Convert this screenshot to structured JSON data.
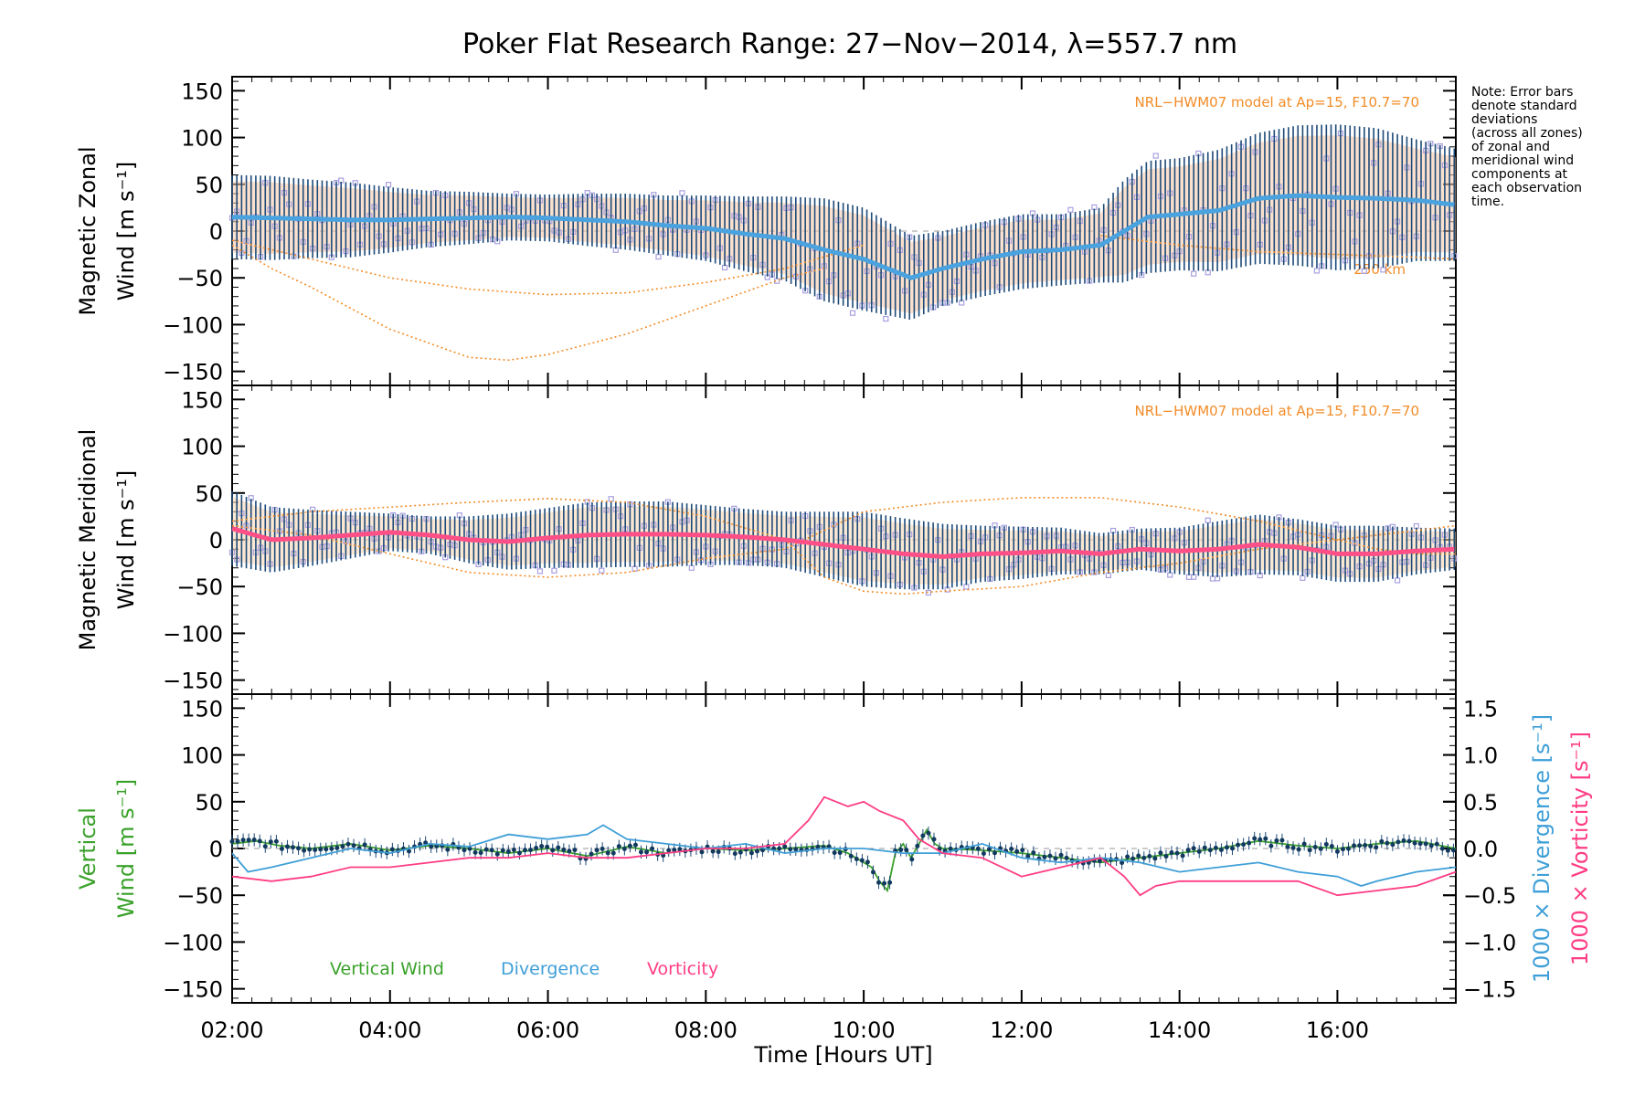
{
  "colors": {
    "zonal_mean": "#4aa3df",
    "meridional_mean": "#ff4f87",
    "error_bar": "#1e4a78",
    "model_line": "#f28c28",
    "vertical": "#3aa12a",
    "divergence": "#3f9fd8",
    "vorticity": "#ff3d84",
    "scatter_points": "#a8a0e0"
  },
  "figure": {
    "title": "Poker Flat Research Range: 27−Nov−2014, λ=557.7 nm",
    "note": [
      "Note: Error bars",
      "denote standard",
      "deviations",
      "(across all zones)",
      "of zonal and",
      "meridional wind",
      "components at",
      "each observation",
      "time."
    ],
    "xlabel": "Time [Hours UT]"
  },
  "chart_data": [
    {
      "type": "line",
      "panel": "zonal",
      "ylabel_line1": "Magnetic Zonal",
      "ylabel_line2": "Wind [m s⁻¹]",
      "ylim": [
        -165,
        165
      ],
      "yticks": [
        150,
        100,
        50,
        0,
        -50,
        -100,
        -150
      ],
      "ytick_labels": [
        "150",
        "100",
        "50",
        "0",
        "−50",
        "−100",
        "−150"
      ],
      "xlim": [
        2.0,
        17.5
      ],
      "model_label": "NRL−HWM07 model at Ap=15, F10.7=70",
      "model_line_label": "250 km",
      "series": [
        {
          "role": "mean",
          "x": [
            2.0,
            2.5,
            3.0,
            3.5,
            4.0,
            4.5,
            5.0,
            5.5,
            6.0,
            6.5,
            7.0,
            7.5,
            8.0,
            8.5,
            9.0,
            9.5,
            10.0,
            10.3,
            10.6,
            11.0,
            11.5,
            12.0,
            12.5,
            13.0,
            13.3,
            13.6,
            14.0,
            14.5,
            15.0,
            15.5,
            16.0,
            16.5,
            17.0,
            17.5
          ],
          "y": [
            15,
            14,
            13,
            12,
            12,
            13,
            14,
            15,
            14,
            12,
            10,
            6,
            3,
            -3,
            -8,
            -20,
            -30,
            -40,
            -50,
            -40,
            -30,
            -22,
            -20,
            -15,
            0,
            15,
            18,
            22,
            35,
            38,
            36,
            35,
            33,
            28
          ],
          "err": [
            45,
            45,
            42,
            40,
            35,
            30,
            28,
            25,
            25,
            28,
            30,
            32,
            35,
            40,
            45,
            55,
            55,
            50,
            45,
            40,
            40,
            40,
            38,
            40,
            55,
            60,
            60,
            65,
            70,
            75,
            78,
            75,
            65,
            60
          ]
        },
        {
          "role": "model",
          "x": [
            2.0,
            2.5,
            3.0,
            4.0,
            5.0,
            5.5,
            6.0,
            7.0,
            8.0,
            9.0,
            9.5
          ],
          "y": [
            -15,
            -40,
            -60,
            -105,
            -135,
            -138,
            -132,
            -110,
            -80,
            -50,
            -40
          ]
        },
        {
          "role": "model",
          "x": [
            2.0,
            3.0,
            4.0,
            5.0,
            6.0,
            7.0,
            8.0,
            9.0,
            10.0
          ],
          "y": [
            -10,
            -30,
            -50,
            -62,
            -68,
            -66,
            -55,
            -40,
            -15
          ]
        },
        {
          "role": "model",
          "x": [
            13.0,
            14.0,
            15.0,
            16.0,
            17.0,
            17.5
          ],
          "y": [
            -5,
            -15,
            -22,
            -25,
            -28,
            -30
          ]
        }
      ]
    },
    {
      "type": "line",
      "panel": "meridional",
      "ylabel_line1": "Magnetic Meridional",
      "ylabel_line2": "Wind [m s⁻¹]",
      "ylim": [
        -165,
        165
      ],
      "yticks": [
        150,
        100,
        50,
        0,
        -50,
        -100,
        -150
      ],
      "ytick_labels": [
        "150",
        "100",
        "50",
        "0",
        "−50",
        "−100",
        "−150"
      ],
      "xlim": [
        2.0,
        17.5
      ],
      "model_label": "NRL−HWM07 model at Ap=15, F10.7=70",
      "series": [
        {
          "role": "mean",
          "x": [
            2.0,
            2.5,
            3.0,
            3.5,
            4.0,
            4.5,
            5.0,
            5.5,
            6.0,
            6.5,
            7.0,
            7.5,
            8.0,
            8.5,
            9.0,
            9.5,
            10.0,
            10.5,
            11.0,
            11.5,
            12.0,
            12.5,
            13.0,
            13.5,
            14.0,
            14.5,
            15.0,
            15.5,
            16.0,
            16.5,
            17.0,
            17.5
          ],
          "y": [
            12,
            0,
            2,
            5,
            8,
            5,
            0,
            -2,
            2,
            5,
            6,
            6,
            5,
            3,
            0,
            -5,
            -10,
            -15,
            -18,
            -15,
            -14,
            -12,
            -15,
            -10,
            -12,
            -10,
            -5,
            -8,
            -15,
            -15,
            -12,
            -10
          ],
          "err": [
            40,
            35,
            30,
            25,
            20,
            20,
            25,
            30,
            32,
            35,
            35,
            35,
            32,
            30,
            30,
            35,
            40,
            38,
            35,
            30,
            28,
            25,
            22,
            22,
            25,
            30,
            32,
            30,
            30,
            30,
            25,
            22
          ]
        },
        {
          "role": "model",
          "x": [
            2.0,
            3.0,
            4.0,
            5.0,
            6.0,
            7.0,
            8.0,
            9.0,
            10.0,
            11.0,
            12.0,
            13.0,
            14.0,
            15.0,
            16.0,
            16.5,
            17.0,
            17.5
          ],
          "y": [
            15,
            5,
            -15,
            -35,
            -40,
            -35,
            -20,
            -10,
            30,
            40,
            45,
            45,
            35,
            20,
            0,
            -10,
            -15,
            -15
          ]
        },
        {
          "role": "model",
          "x": [
            2.0,
            3.0,
            4.0,
            5.0,
            6.0,
            7.0,
            8.0,
            9.0,
            9.5,
            10.0,
            10.5,
            11.0,
            12.0,
            13.0,
            14.0,
            15.0,
            16.0,
            17.0,
            17.5
          ],
          "y": [
            20,
            30,
            35,
            40,
            44,
            40,
            25,
            0,
            -40,
            -55,
            -58,
            -55,
            -50,
            -35,
            -25,
            -10,
            0,
            10,
            15
          ]
        }
      ]
    },
    {
      "type": "line",
      "panel": "vertical",
      "ylabel_line1": "Vertical",
      "ylabel_line2": "Wind [m s⁻¹]",
      "ylim": [
        -165,
        165
      ],
      "yticks": [
        150,
        100,
        50,
        0,
        -50,
        -100,
        -150
      ],
      "ytick_labels": [
        "150",
        "100",
        "50",
        "0",
        "−50",
        "−100",
        "−150"
      ],
      "y2lim": [
        -1.65,
        1.65
      ],
      "y2ticks": [
        1.5,
        1.0,
        0.5,
        0.0,
        -0.5,
        -1.0,
        -1.5
      ],
      "y2tick_labels": [
        "1.5",
        "1.0",
        "0.5",
        "0.0",
        "−0.5",
        "−1.0",
        "−1.5"
      ],
      "y2label_a": "1000 × Divergence [s⁻¹]",
      "y2label_b": "1000 × Vorticity [s⁻¹]",
      "xlim": [
        2.0,
        17.5
      ],
      "xticks": [
        2,
        4,
        6,
        8,
        10,
        12,
        14,
        16
      ],
      "xtick_labels": [
        "02:00",
        "04:00",
        "06:00",
        "08:00",
        "10:00",
        "12:00",
        "14:00",
        "16:00"
      ],
      "legend": [
        "Vertical Wind",
        "Divergence",
        "Vorticity"
      ],
      "series": [
        {
          "name": "Vertical Wind",
          "axis": "left",
          "x": [
            2.0,
            2.3,
            2.6,
            3.0,
            3.5,
            4.0,
            4.5,
            5.0,
            5.5,
            6.0,
            6.5,
            7.0,
            7.5,
            8.0,
            8.5,
            9.0,
            9.5,
            9.8,
            10.0,
            10.1,
            10.2,
            10.3,
            10.4,
            10.5,
            10.6,
            10.7,
            10.8,
            10.9,
            11.0,
            11.5,
            12.0,
            12.5,
            13.0,
            13.5,
            14.0,
            14.5,
            15.0,
            15.5,
            16.0,
            16.5,
            17.0,
            17.5
          ],
          "y": [
            5,
            8,
            3,
            0,
            5,
            -2,
            3,
            0,
            -5,
            0,
            -8,
            2,
            -5,
            0,
            -2,
            0,
            3,
            -5,
            -15,
            -20,
            -35,
            -45,
            -5,
            5,
            -10,
            5,
            20,
            5,
            0,
            -2,
            -5,
            -10,
            -15,
            -10,
            -5,
            0,
            8,
            3,
            0,
            5,
            8,
            0
          ]
        },
        {
          "name": "Divergence",
          "axis": "right",
          "x": [
            2.0,
            2.2,
            2.5,
            3.0,
            3.5,
            4.0,
            4.5,
            5.0,
            5.5,
            6.0,
            6.5,
            6.7,
            7.0,
            7.5,
            8.0,
            8.5,
            9.0,
            9.5,
            10.0,
            10.5,
            11.0,
            11.5,
            12.0,
            12.5,
            13.0,
            13.5,
            14.0,
            14.5,
            15.0,
            15.5,
            16.0,
            16.3,
            16.5,
            17.0,
            17.5
          ],
          "y": [
            -0.05,
            -0.25,
            -0.2,
            -0.1,
            0.0,
            -0.05,
            0.05,
            0.02,
            0.15,
            0.1,
            0.15,
            0.25,
            0.1,
            0.05,
            0.0,
            0.05,
            -0.05,
            0.0,
            0.0,
            -0.05,
            -0.05,
            0.05,
            -0.1,
            -0.15,
            -0.1,
            -0.15,
            -0.25,
            -0.2,
            -0.15,
            -0.25,
            -0.3,
            -0.4,
            -0.35,
            -0.25,
            -0.2
          ]
        },
        {
          "name": "Vorticity",
          "axis": "right",
          "x": [
            2.0,
            2.5,
            3.0,
            3.5,
            4.0,
            4.5,
            5.0,
            5.5,
            6.0,
            6.5,
            7.0,
            7.5,
            8.0,
            8.5,
            9.0,
            9.3,
            9.5,
            9.8,
            10.0,
            10.2,
            10.5,
            10.7,
            11.0,
            11.5,
            12.0,
            12.5,
            13.0,
            13.3,
            13.5,
            13.7,
            14.0,
            14.5,
            15.0,
            15.5,
            16.0,
            16.5,
            17.0,
            17.5
          ],
          "y": [
            -0.3,
            -0.35,
            -0.3,
            -0.2,
            -0.2,
            -0.15,
            -0.1,
            -0.1,
            -0.05,
            -0.1,
            -0.1,
            -0.05,
            0.0,
            0.0,
            0.05,
            0.3,
            0.55,
            0.45,
            0.5,
            0.4,
            0.3,
            0.1,
            -0.05,
            -0.1,
            -0.3,
            -0.2,
            -0.1,
            -0.3,
            -0.5,
            -0.4,
            -0.35,
            -0.35,
            -0.35,
            -0.35,
            -0.5,
            -0.45,
            -0.4,
            -0.25
          ]
        }
      ]
    }
  ]
}
